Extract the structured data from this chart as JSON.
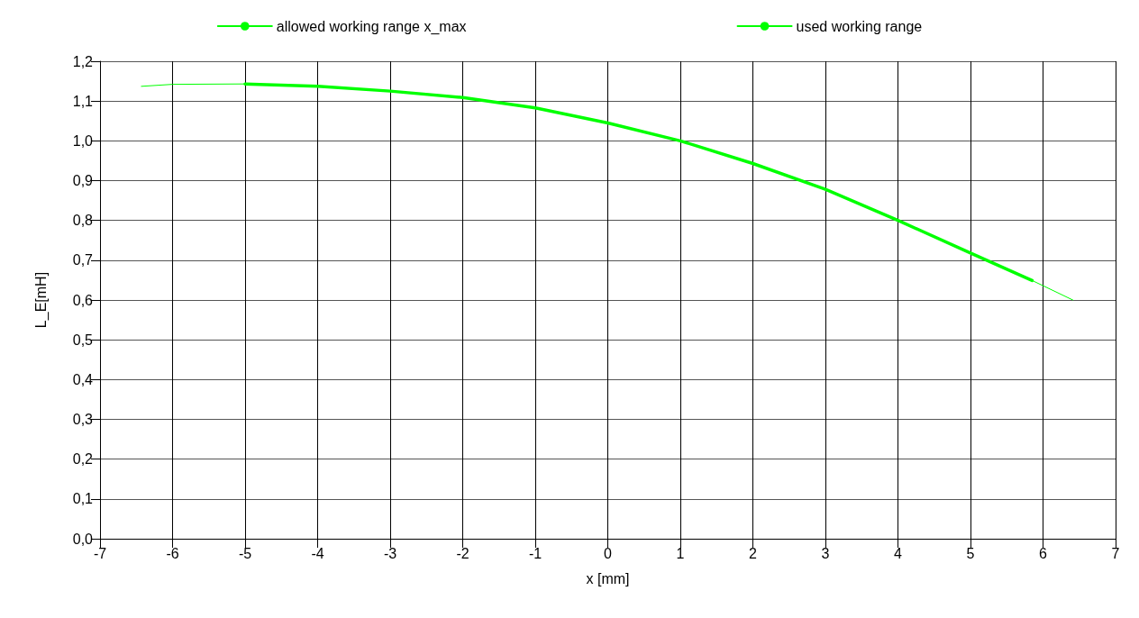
{
  "chart_data": {
    "type": "line",
    "xlabel": "x [mm]",
    "ylabel": "L_E[mH]",
    "xlim": [
      -7,
      7
    ],
    "xticks": [
      -7,
      -6,
      -5,
      -4,
      -3,
      -2,
      -1,
      0,
      1,
      2,
      3,
      4,
      5,
      6,
      7
    ],
    "ylim": [
      0,
      1.2
    ],
    "yticks": [
      {
        "value": 0,
        "label": "0,0"
      },
      {
        "value": 0.1,
        "label": "0,1"
      },
      {
        "value": 0.2,
        "label": "0,2"
      },
      {
        "value": 0.3,
        "label": "0,3"
      },
      {
        "value": 0.4,
        "label": "0,4"
      },
      {
        "value": 0.5,
        "label": "0,5"
      },
      {
        "value": 0.6,
        "label": "0,6"
      },
      {
        "value": 0.7,
        "label": "0,7"
      },
      {
        "value": 0.8,
        "label": "0,8"
      },
      {
        "value": 0.9,
        "label": "0,9"
      },
      {
        "value": 1.0,
        "label": "1,0"
      },
      {
        "value": 1.1,
        "label": "1,1"
      },
      {
        "value": 1.2,
        "label": "1,2"
      }
    ],
    "grid": true,
    "legend": "top",
    "marker": "none",
    "series": [
      {
        "name": "allowed working range x_max",
        "color": "#00ff00",
        "x": [
          -6.43,
          -6,
          -5,
          -4,
          -3,
          -2,
          -1,
          0,
          1,
          2,
          3,
          4,
          5,
          5.85,
          6.41
        ],
        "values": [
          1.137,
          1.142,
          1.143,
          1.137,
          1.125,
          1.109,
          1.083,
          1.045,
          1.0,
          0.943,
          0.878,
          0.8,
          0.718,
          0.649,
          0.6
        ]
      },
      {
        "name": "used working range",
        "color": "#00ff00",
        "x": [
          -5,
          -4,
          -3,
          -2,
          -1,
          0,
          1,
          2,
          3,
          4,
          5,
          5.85
        ],
        "values": [
          1.143,
          1.137,
          1.125,
          1.109,
          1.083,
          1.045,
          1.0,
          0.943,
          0.878,
          0.8,
          0.718,
          0.649
        ]
      }
    ]
  }
}
